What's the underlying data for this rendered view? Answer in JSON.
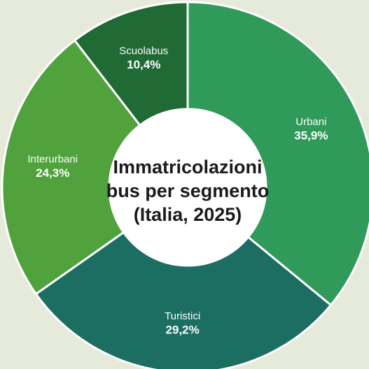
{
  "chart_data": {
    "type": "donut",
    "title": "Immatricolazioni bus per segmento (Italia, 2025)",
    "categories": [
      "Urbani",
      "Turistici",
      "Interurbani",
      "Scuolabus"
    ],
    "values": [
      35.9,
      29.2,
      24.3,
      10.4
    ],
    "value_labels": [
      "35,9%",
      "29,2%",
      "24,3%",
      "10,4%"
    ],
    "colors": [
      "#2f9a59",
      "#1d6e62",
      "#4fa23c",
      "#1f6a35"
    ]
  }
}
